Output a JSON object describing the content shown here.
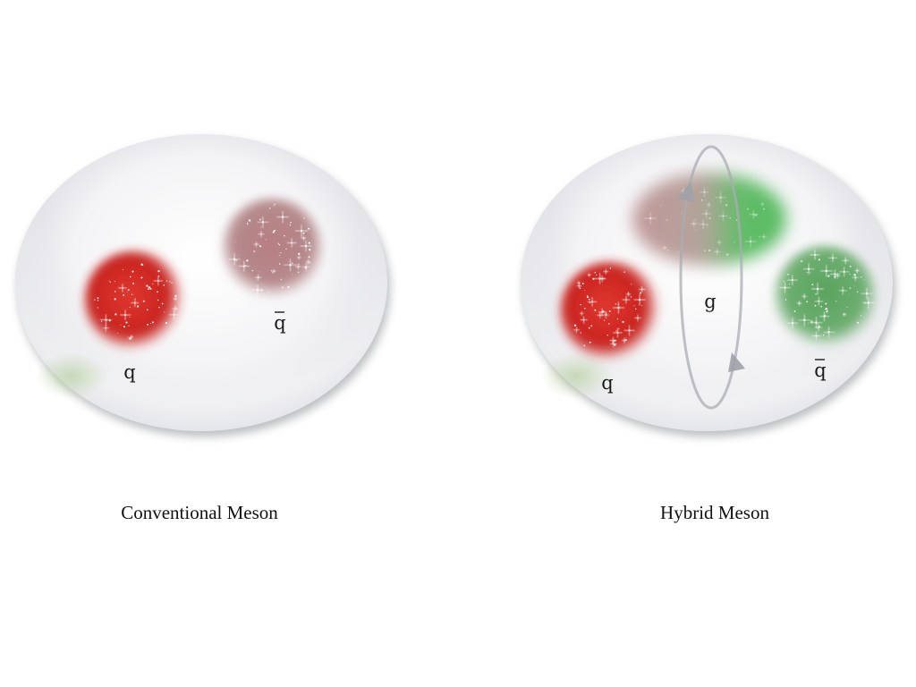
{
  "panels": [
    {
      "caption": "Conventional Meson",
      "particles": [
        {
          "label": "q",
          "color": "#d42a25"
        },
        {
          "label": "q",
          "overline": true,
          "color": "#b98a8d"
        }
      ]
    },
    {
      "caption": "Hybrid Meson",
      "particles": [
        {
          "label": "q",
          "color": "#d42a25"
        },
        {
          "label": "g",
          "color": "#3fb24a"
        },
        {
          "label": "q",
          "overline": true,
          "color": "#5ea362"
        }
      ]
    }
  ]
}
